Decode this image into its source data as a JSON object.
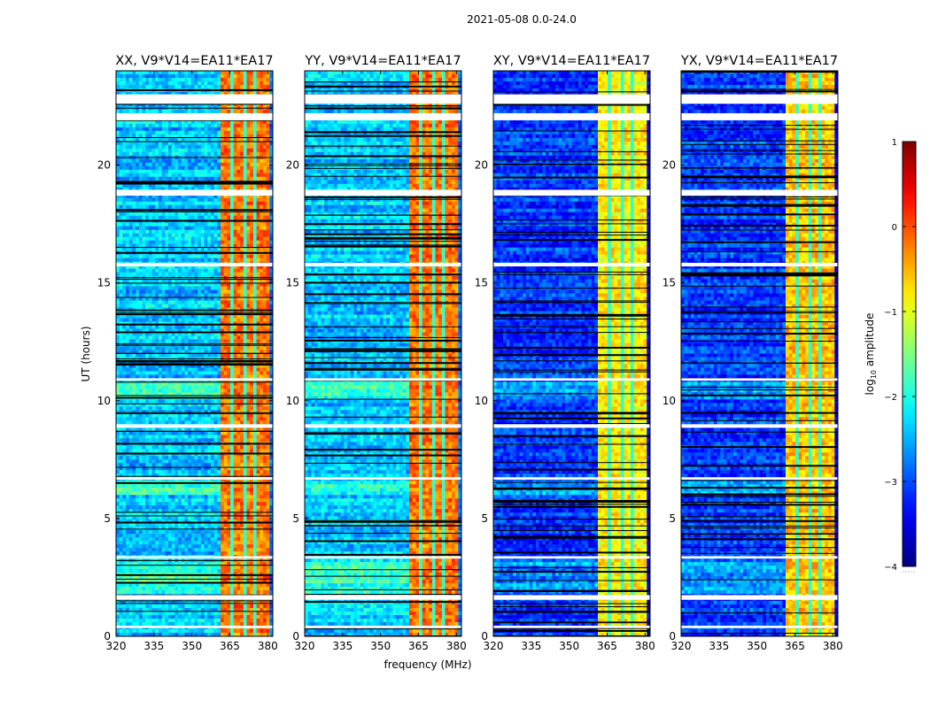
{
  "figure": {
    "suptitle": "2021-05-08 0.0-24.0",
    "xlabel": "frequency (MHz)",
    "ylabel": "UT (hours)",
    "colorbar_label_main": "log",
    "colorbar_label_sub": "10",
    "colorbar_label_tail": " amplitude"
  },
  "chart_data": {
    "type": "heatmap",
    "title": "2021-05-08 0.0-24.0",
    "xlabel": "frequency (MHz)",
    "ylabel": "UT (hours)",
    "xlim": [
      320,
      382
    ],
    "ylim": [
      0,
      24
    ],
    "xticks": [
      320,
      335,
      350,
      365,
      380
    ],
    "xtick_labels": [
      "320",
      "335",
      "350",
      "365",
      "380"
    ],
    "yticks": [
      0,
      5,
      10,
      15,
      20
    ],
    "ytick_labels": [
      "0",
      "5",
      "10",
      "15",
      "20"
    ],
    "colormap": "jet",
    "colorbar": {
      "label": "log10 amplitude",
      "range": [
        -4,
        1
      ],
      "ticks": [
        -4,
        -3,
        -2,
        -1,
        0,
        1
      ],
      "tick_labels": [
        "−4",
        "−3",
        "−2",
        "−1",
        "0",
        "1"
      ]
    },
    "panels": [
      {
        "title": "XX, V9*V14=EA11*EA17",
        "background_level": -2.4,
        "band_level": -0.2
      },
      {
        "title": "YY, V9*V14=EA11*EA17",
        "background_level": -2.4,
        "band_level": -0.2
      },
      {
        "title": "XY, V9*V14=EA11*EA17",
        "background_level": -3.1,
        "band_level": -0.8
      },
      {
        "title": "YX, V9*V14=EA11*EA17",
        "background_level": -3.1,
        "band_level": -0.6
      }
    ],
    "signal_band_mhz": [
      361.5,
      380.5
    ],
    "band_notches_mhz": [
      366,
      370.5,
      375
    ],
    "flagged_white_rows_hours": [
      [
        22.6,
        23.0
      ],
      [
        21.9,
        22.2
      ],
      [
        18.7,
        18.95
      ],
      [
        15.7,
        15.85
      ],
      [
        10.85,
        10.95
      ],
      [
        8.85,
        9.0
      ],
      [
        6.65,
        6.75
      ],
      [
        3.3,
        3.4
      ],
      [
        1.55,
        1.75
      ],
      [
        0.35,
        0.45
      ]
    ],
    "bright_rows_hours": [
      [
        6.0,
        6.6
      ],
      [
        10.0,
        10.8
      ],
      [
        1.8,
        3.2
      ]
    ]
  }
}
